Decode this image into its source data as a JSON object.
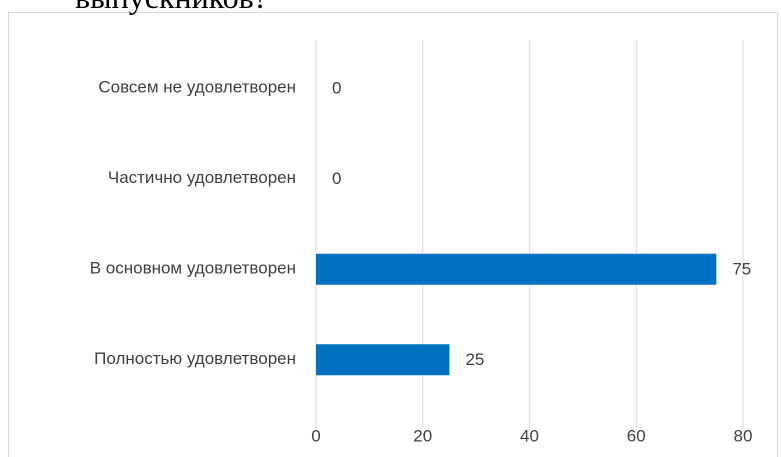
{
  "chart_data": {
    "type": "bar",
    "orientation": "horizontal",
    "title": "выпускников?",
    "categories": [
      "Совсем не удовлетворен",
      "Частично удовлетворен",
      "В основном удовлетворен",
      "Полностью удовлетворен"
    ],
    "values": [
      0,
      0,
      75,
      25
    ],
    "color": "#0070c0",
    "xlim": [
      0,
      80
    ],
    "xticks": [
      0,
      20,
      40,
      60,
      80
    ],
    "grid": true
  }
}
